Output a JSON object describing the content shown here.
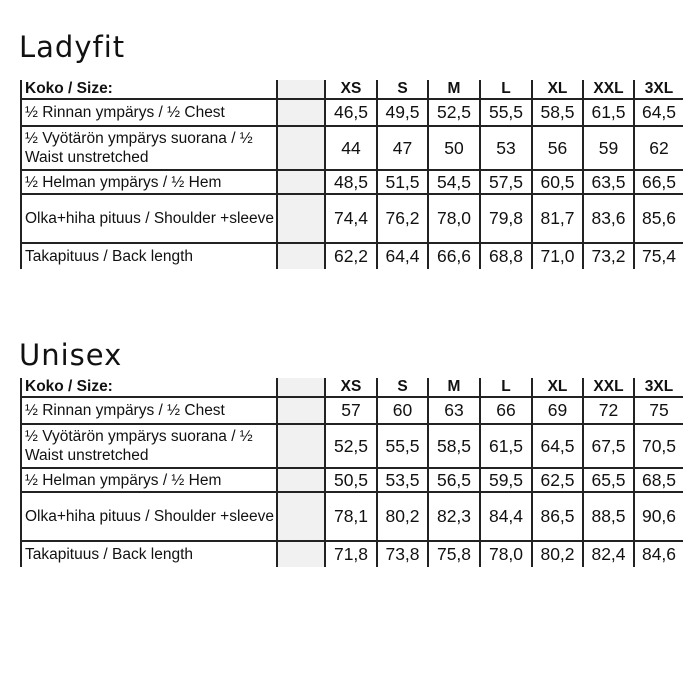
{
  "tables": [
    {
      "title": "Ladyfit",
      "header_label": "Koko / Size:",
      "sizes": [
        "XS",
        "S",
        "M",
        "L",
        "XL",
        "XXL",
        "3XL"
      ],
      "rows": [
        {
          "label": "½ Rinnan ympärys /  ½ Chest",
          "values": [
            "46,5",
            "49,5",
            "52,5",
            "55,5",
            "58,5",
            "61,5",
            "64,5"
          ]
        },
        {
          "label": "½ Vyötärön ympärys  suorana / ½ Waist unstretched",
          "values": [
            "44",
            "47",
            "50",
            "53",
            "56",
            "59",
            "62"
          ]
        },
        {
          "label": "½ Helman ympärys / ½ Hem",
          "values": [
            "48,5",
            "51,5",
            "54,5",
            "57,5",
            "60,5",
            "63,5",
            "66,5"
          ]
        },
        {
          "label": "Olka+hiha pituus / Shoulder +sleeve",
          "values": [
            "74,4",
            "76,2",
            "78,0",
            "79,8",
            "81,7",
            "83,6",
            "85,6"
          ]
        },
        {
          "label": "Takapituus / Back length",
          "values": [
            "62,2",
            "64,4",
            "66,6",
            "68,8",
            "71,0",
            "73,2",
            "75,4"
          ]
        }
      ]
    },
    {
      "title": "Unisex",
      "header_label": "Koko / Size:",
      "sizes": [
        "XS",
        "S",
        "M",
        "L",
        "XL",
        "XXL",
        "3XL"
      ],
      "rows": [
        {
          "label": "½ Rinnan ympärys /  ½ Chest",
          "values": [
            "57",
            "60",
            "63",
            "66",
            "69",
            "72",
            "75"
          ]
        },
        {
          "label": "½ Vyötärön ympärys  suorana / ½ Waist unstretched",
          "values": [
            "52,5",
            "55,5",
            "58,5",
            "61,5",
            "64,5",
            "67,5",
            "70,5"
          ]
        },
        {
          "label": "½ Helman ympärys / ½ Hem",
          "values": [
            "50,5",
            "53,5",
            "56,5",
            "59,5",
            "62,5",
            "65,5",
            "68,5"
          ]
        },
        {
          "label": "Olka+hiha pituus / Shoulder +sleeve",
          "values": [
            "78,1",
            "80,2",
            "82,3",
            "84,4",
            "86,5",
            "88,5",
            "90,6"
          ]
        },
        {
          "label": "Takapituus / Back length",
          "values": [
            "71,8",
            "73,8",
            "75,8",
            "78,0",
            "80,2",
            "82,4",
            "84,6"
          ]
        }
      ]
    }
  ]
}
